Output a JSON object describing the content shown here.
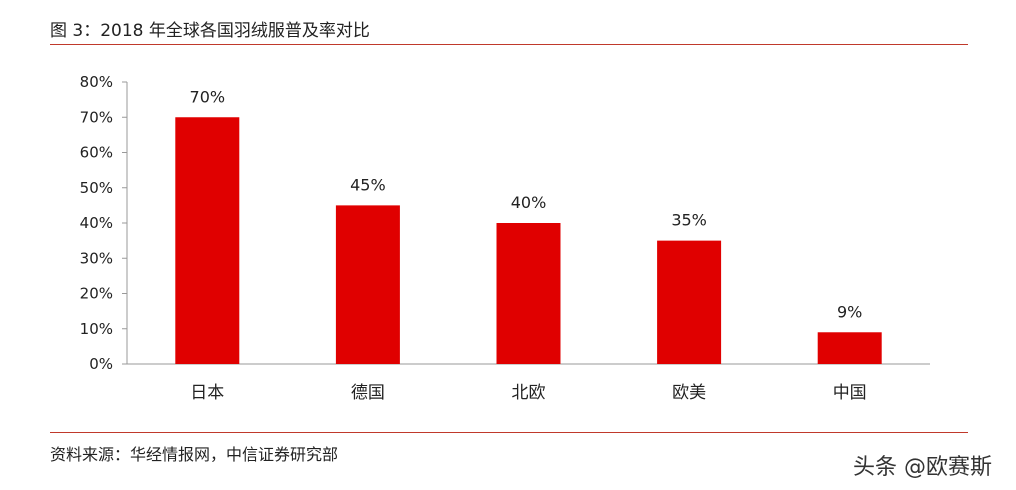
{
  "header": {
    "title": "图 3：2018 年全球各国羽绒服普及率对比"
  },
  "footer": {
    "source": "资料来源：华经情报网，中信证券研究部"
  },
  "watermark": {
    "text": "头条 @欧赛斯"
  },
  "colors": {
    "bar": "#e00000",
    "rule": "#c0392b"
  },
  "chart_data": {
    "type": "bar",
    "categories": [
      "日本",
      "德国",
      "北欧",
      "欧美",
      "中国"
    ],
    "values": [
      70,
      45,
      40,
      35,
      9
    ],
    "data_labels": [
      "70%",
      "45%",
      "40%",
      "35%",
      "9%"
    ],
    "yticks": [
      "0%",
      "10%",
      "20%",
      "30%",
      "40%",
      "50%",
      "60%",
      "70%",
      "80%"
    ],
    "ylim": [
      0,
      80
    ],
    "grid": false,
    "legend": "none"
  }
}
